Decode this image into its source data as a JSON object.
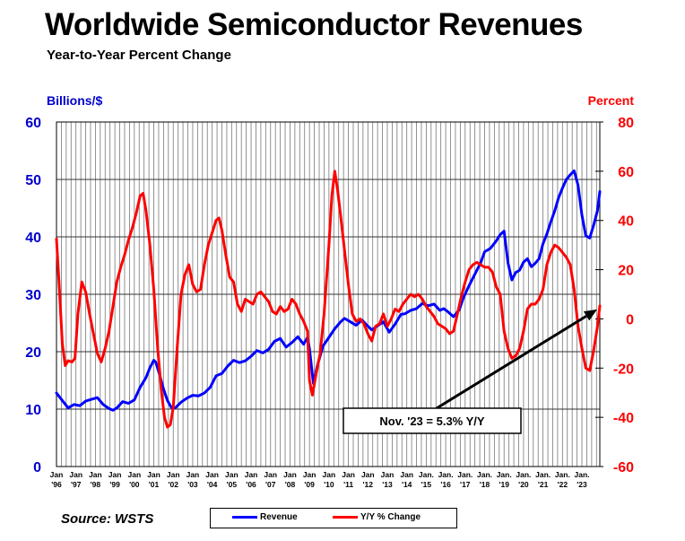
{
  "title": "Worldwide Semiconductor Revenues",
  "subtitle": "Year-to-Year Percent Change",
  "source": "Source: WSTS",
  "chart_data": {
    "type": "line",
    "left_axis": {
      "label": "Billions/$",
      "min": 0,
      "max": 60,
      "ticks": [
        0,
        10,
        20,
        30,
        40,
        50,
        60
      ],
      "color": "#0000cc"
    },
    "right_axis": {
      "label": "Percent",
      "min": -60,
      "max": 80,
      "ticks": [
        -60,
        -40,
        -20,
        0,
        20,
        40,
        60,
        80
      ],
      "color": "#ff0000"
    },
    "x_range": [
      1996.0,
      2023.92
    ],
    "x_ticks": [
      {
        "x": 1996,
        "line1": "Jan",
        "line2": "'96"
      },
      {
        "x": 1997,
        "line1": "Jan",
        "line2": "'97"
      },
      {
        "x": 1998,
        "line1": "Jan",
        "line2": "'98"
      },
      {
        "x": 1999,
        "line1": "Jan",
        "line2": "'99"
      },
      {
        "x": 2000,
        "line1": "Jan",
        "line2": "'00"
      },
      {
        "x": 2001,
        "line1": "Jan",
        "line2": "'01"
      },
      {
        "x": 2002,
        "line1": "Jan",
        "line2": "'02"
      },
      {
        "x": 2003,
        "line1": "Jan",
        "line2": "'03"
      },
      {
        "x": 2004,
        "line1": "Jan",
        "line2": "'04"
      },
      {
        "x": 2005,
        "line1": "Jan",
        "line2": "'05"
      },
      {
        "x": 2006,
        "line1": "Jan",
        "line2": "'06"
      },
      {
        "x": 2007,
        "line1": "Jan",
        "line2": "'07"
      },
      {
        "x": 2008,
        "line1": "Jan",
        "line2": "'08"
      },
      {
        "x": 2009,
        "line1": "Jan",
        "line2": "'09"
      },
      {
        "x": 2010,
        "line1": "Jan",
        "line2": "'10"
      },
      {
        "x": 2011,
        "line1": "Jan",
        "line2": "'11"
      },
      {
        "x": 2012,
        "line1": "Jan",
        "line2": "'12"
      },
      {
        "x": 2013,
        "line1": "Jan",
        "line2": "'13"
      },
      {
        "x": 2014,
        "line1": "Jan",
        "line2": "'14"
      },
      {
        "x": 2015,
        "line1": "Jan.",
        "line2": "'15"
      },
      {
        "x": 2016,
        "line1": "Jan.",
        "line2": "'16"
      },
      {
        "x": 2017,
        "line1": "Jan.",
        "line2": "'17"
      },
      {
        "x": 2018,
        "line1": "Jan.",
        "line2": "'18"
      },
      {
        "x": 2019,
        "line1": "Jan.",
        "line2": "'19"
      },
      {
        "x": 2020,
        "line1": "Jan.",
        "line2": "'20"
      },
      {
        "x": 2021,
        "line1": "Jan.",
        "line2": "'21"
      },
      {
        "x": 2022,
        "line1": "Jan.",
        "line2": "'22"
      },
      {
        "x": 2023,
        "line1": "Jan.",
        "line2": "'23"
      }
    ],
    "grid": "vertical-monthly-quarter-lines",
    "series": [
      {
        "name": "Revenue",
        "axis": "left",
        "color": "#0000ff",
        "points": [
          [
            1996.0,
            12.8
          ],
          [
            1996.3,
            11.5
          ],
          [
            1996.6,
            10.2
          ],
          [
            1996.9,
            10.8
          ],
          [
            1997.2,
            10.6
          ],
          [
            1997.5,
            11.4
          ],
          [
            1997.8,
            11.7
          ],
          [
            1998.1,
            12.0
          ],
          [
            1998.4,
            10.8
          ],
          [
            1998.7,
            10.1
          ],
          [
            1998.9,
            9.8
          ],
          [
            1999.1,
            10.2
          ],
          [
            1999.4,
            11.3
          ],
          [
            1999.7,
            11.0
          ],
          [
            2000.0,
            11.6
          ],
          [
            2000.3,
            13.8
          ],
          [
            2000.6,
            15.5
          ],
          [
            2000.8,
            17.2
          ],
          [
            2001.0,
            18.5
          ],
          [
            2001.1,
            18.2
          ],
          [
            2001.3,
            16.0
          ],
          [
            2001.5,
            13.5
          ],
          [
            2001.7,
            11.5
          ],
          [
            2001.9,
            10.3
          ],
          [
            2002.1,
            10.2
          ],
          [
            2002.4,
            11.2
          ],
          [
            2002.7,
            11.9
          ],
          [
            2003.0,
            12.4
          ],
          [
            2003.3,
            12.3
          ],
          [
            2003.6,
            12.8
          ],
          [
            2003.9,
            13.8
          ],
          [
            2004.2,
            15.8
          ],
          [
            2004.5,
            16.2
          ],
          [
            2004.8,
            17.5
          ],
          [
            2005.1,
            18.5
          ],
          [
            2005.4,
            18.1
          ],
          [
            2005.7,
            18.4
          ],
          [
            2006.0,
            19.2
          ],
          [
            2006.3,
            20.2
          ],
          [
            2006.6,
            19.8
          ],
          [
            2006.9,
            20.4
          ],
          [
            2007.2,
            21.8
          ],
          [
            2007.5,
            22.3
          ],
          [
            2007.8,
            20.8
          ],
          [
            2008.1,
            21.6
          ],
          [
            2008.4,
            22.6
          ],
          [
            2008.7,
            21.3
          ],
          [
            2008.9,
            22.5
          ],
          [
            2009.0,
            20.5
          ],
          [
            2009.2,
            14.5
          ],
          [
            2009.4,
            17.5
          ],
          [
            2009.7,
            21.0
          ],
          [
            2010.0,
            22.5
          ],
          [
            2010.3,
            24.0
          ],
          [
            2010.6,
            25.2
          ],
          [
            2010.8,
            25.8
          ],
          [
            2011.1,
            25.2
          ],
          [
            2011.4,
            24.6
          ],
          [
            2011.7,
            25.5
          ],
          [
            2011.9,
            24.8
          ],
          [
            2012.2,
            23.8
          ],
          [
            2012.5,
            24.5
          ],
          [
            2012.8,
            25.2
          ],
          [
            2013.1,
            23.4
          ],
          [
            2013.4,
            24.8
          ],
          [
            2013.7,
            26.5
          ],
          [
            2013.9,
            26.6
          ],
          [
            2014.2,
            27.2
          ],
          [
            2014.5,
            27.5
          ],
          [
            2014.8,
            28.4
          ],
          [
            2015.1,
            28.0
          ],
          [
            2015.4,
            28.3
          ],
          [
            2015.7,
            27.2
          ],
          [
            2015.9,
            27.5
          ],
          [
            2016.1,
            27.0
          ],
          [
            2016.4,
            26.1
          ],
          [
            2016.7,
            27.3
          ],
          [
            2016.9,
            29.3
          ],
          [
            2017.2,
            31.5
          ],
          [
            2017.5,
            33.5
          ],
          [
            2017.8,
            35.5
          ],
          [
            2018.0,
            37.4
          ],
          [
            2018.3,
            38.0
          ],
          [
            2018.6,
            39.3
          ],
          [
            2018.8,
            40.4
          ],
          [
            2019.0,
            41.0
          ],
          [
            2019.2,
            35.5
          ],
          [
            2019.4,
            32.5
          ],
          [
            2019.6,
            33.8
          ],
          [
            2019.8,
            34.2
          ],
          [
            2020.0,
            35.6
          ],
          [
            2020.2,
            36.2
          ],
          [
            2020.4,
            34.8
          ],
          [
            2020.6,
            35.4
          ],
          [
            2020.8,
            36.2
          ],
          [
            2021.0,
            38.8
          ],
          [
            2021.2,
            40.5
          ],
          [
            2021.4,
            42.6
          ],
          [
            2021.6,
            44.5
          ],
          [
            2021.8,
            46.8
          ],
          [
            2022.0,
            48.5
          ],
          [
            2022.2,
            50.0
          ],
          [
            2022.4,
            50.8
          ],
          [
            2022.6,
            51.5
          ],
          [
            2022.8,
            49.0
          ],
          [
            2023.0,
            43.8
          ],
          [
            2023.2,
            40.2
          ],
          [
            2023.4,
            39.8
          ],
          [
            2023.6,
            42.0
          ],
          [
            2023.8,
            44.6
          ],
          [
            2023.92,
            47.9
          ]
        ]
      },
      {
        "name": "Y/Y % Change",
        "axis": "right",
        "color": "#ff0000",
        "points": [
          [
            1996.0,
            32.5
          ],
          [
            1996.15,
            12
          ],
          [
            1996.3,
            -10
          ],
          [
            1996.45,
            -19
          ],
          [
            1996.6,
            -17
          ],
          [
            1996.8,
            -17.5
          ],
          [
            1996.95,
            -16
          ],
          [
            1997.1,
            2
          ],
          [
            1997.3,
            15
          ],
          [
            1997.5,
            11
          ],
          [
            1997.7,
            2
          ],
          [
            1997.9,
            -6
          ],
          [
            1998.1,
            -14
          ],
          [
            1998.3,
            -17.5
          ],
          [
            1998.5,
            -12
          ],
          [
            1998.7,
            -5
          ],
          [
            1998.9,
            5
          ],
          [
            1999.1,
            15
          ],
          [
            1999.3,
            21
          ],
          [
            1999.5,
            26
          ],
          [
            1999.7,
            32
          ],
          [
            1999.9,
            37
          ],
          [
            2000.1,
            43
          ],
          [
            2000.3,
            50
          ],
          [
            2000.45,
            51
          ],
          [
            2000.6,
            44
          ],
          [
            2000.8,
            30
          ],
          [
            2001.0,
            12
          ],
          [
            2001.2,
            -12
          ],
          [
            2001.4,
            -30
          ],
          [
            2001.55,
            -40
          ],
          [
            2001.7,
            -44
          ],
          [
            2001.85,
            -43
          ],
          [
            2002.0,
            -36
          ],
          [
            2002.2,
            -12
          ],
          [
            2002.4,
            10
          ],
          [
            2002.6,
            18
          ],
          [
            2002.8,
            22
          ],
          [
            2003.0,
            14
          ],
          [
            2003.2,
            11
          ],
          [
            2003.4,
            12
          ],
          [
            2003.6,
            22
          ],
          [
            2003.8,
            30
          ],
          [
            2004.0,
            35
          ],
          [
            2004.2,
            40
          ],
          [
            2004.35,
            41
          ],
          [
            2004.5,
            36
          ],
          [
            2004.7,
            26
          ],
          [
            2004.9,
            17
          ],
          [
            2005.1,
            15
          ],
          [
            2005.3,
            6
          ],
          [
            2005.5,
            3
          ],
          [
            2005.7,
            8
          ],
          [
            2005.9,
            7
          ],
          [
            2006.1,
            6
          ],
          [
            2006.3,
            10
          ],
          [
            2006.5,
            11
          ],
          [
            2006.7,
            9
          ],
          [
            2006.9,
            7
          ],
          [
            2007.1,
            3
          ],
          [
            2007.3,
            2
          ],
          [
            2007.5,
            5
          ],
          [
            2007.7,
            3
          ],
          [
            2007.9,
            4
          ],
          [
            2008.1,
            8
          ],
          [
            2008.3,
            6
          ],
          [
            2008.5,
            2
          ],
          [
            2008.7,
            -1
          ],
          [
            2008.9,
            -5
          ],
          [
            2009.0,
            -25
          ],
          [
            2009.15,
            -31
          ],
          [
            2009.35,
            -22
          ],
          [
            2009.55,
            -14
          ],
          [
            2009.75,
            2
          ],
          [
            2010.0,
            30
          ],
          [
            2010.15,
            50
          ],
          [
            2010.3,
            60
          ],
          [
            2010.45,
            52
          ],
          [
            2010.6,
            42
          ],
          [
            2010.8,
            28
          ],
          [
            2011.0,
            14
          ],
          [
            2011.2,
            2
          ],
          [
            2011.4,
            -1
          ],
          [
            2011.6,
            0
          ],
          [
            2011.8,
            -2
          ],
          [
            2012.0,
            -6
          ],
          [
            2012.2,
            -9
          ],
          [
            2012.4,
            -3
          ],
          [
            2012.6,
            -2
          ],
          [
            2012.8,
            2
          ],
          [
            2013.0,
            -3
          ],
          [
            2013.2,
            0
          ],
          [
            2013.4,
            4
          ],
          [
            2013.6,
            3
          ],
          [
            2013.8,
            6
          ],
          [
            2014.0,
            8
          ],
          [
            2014.2,
            10
          ],
          [
            2014.4,
            9
          ],
          [
            2014.6,
            10
          ],
          [
            2014.8,
            8
          ],
          [
            2015.0,
            5
          ],
          [
            2015.2,
            3
          ],
          [
            2015.4,
            1
          ],
          [
            2015.6,
            -2
          ],
          [
            2015.8,
            -3
          ],
          [
            2016.0,
            -4
          ],
          [
            2016.2,
            -6
          ],
          [
            2016.4,
            -5
          ],
          [
            2016.6,
            2
          ],
          [
            2016.8,
            9
          ],
          [
            2017.0,
            15
          ],
          [
            2017.2,
            20
          ],
          [
            2017.4,
            22
          ],
          [
            2017.6,
            23
          ],
          [
            2017.8,
            22
          ],
          [
            2018.0,
            21
          ],
          [
            2018.2,
            21
          ],
          [
            2018.4,
            19
          ],
          [
            2018.6,
            13
          ],
          [
            2018.8,
            10
          ],
          [
            2019.0,
            -5
          ],
          [
            2019.2,
            -12
          ],
          [
            2019.4,
            -16
          ],
          [
            2019.6,
            -15
          ],
          [
            2019.8,
            -12
          ],
          [
            2020.0,
            -5
          ],
          [
            2020.2,
            4
          ],
          [
            2020.4,
            6
          ],
          [
            2020.6,
            6
          ],
          [
            2020.8,
            8
          ],
          [
            2021.0,
            12
          ],
          [
            2021.2,
            22
          ],
          [
            2021.4,
            27
          ],
          [
            2021.6,
            30
          ],
          [
            2021.8,
            29
          ],
          [
            2022.0,
            27
          ],
          [
            2022.2,
            25
          ],
          [
            2022.4,
            22
          ],
          [
            2022.6,
            12
          ],
          [
            2022.8,
            -3
          ],
          [
            2023.0,
            -12
          ],
          [
            2023.2,
            -20
          ],
          [
            2023.4,
            -21
          ],
          [
            2023.6,
            -13
          ],
          [
            2023.8,
            -3
          ],
          [
            2023.92,
            5.3
          ]
        ]
      }
    ],
    "annotation": {
      "text": "Nov. '23 = 5.3% Y/Y",
      "target_x": 2023.92,
      "target_y": 5.3,
      "axis": "right"
    }
  }
}
